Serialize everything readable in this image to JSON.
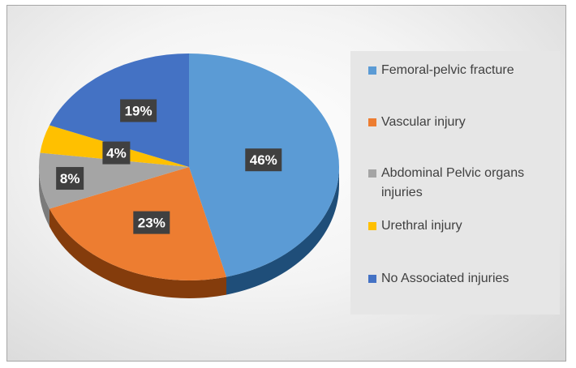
{
  "chart_data": {
    "type": "pie",
    "title": "",
    "categories": [
      "Femoral-pelvic fracture",
      "Vascular injury",
      "Abdominal Pelvic organs injuries",
      "Urethral injury",
      "No Associated injuries"
    ],
    "values": [
      46,
      23,
      8,
      4,
      19
    ],
    "data_labels": [
      "46%",
      "23%",
      "8%",
      "4%",
      "19%"
    ],
    "colors": [
      "#5b9bd5",
      "#ed7d31",
      "#a5a5a5",
      "#ffc000",
      "#4472c4"
    ],
    "side_colors": [
      "#1f4e79",
      "#843c0c",
      "#7b7b7b",
      "#bf9000",
      "#2f5597"
    ],
    "legend_position": "right",
    "style": "3d"
  },
  "legend": {
    "items": [
      {
        "label": "Femoral-pelvic fracture",
        "color": "#5b9bd5"
      },
      {
        "label": "Vascular injury",
        "color": "#ed7d31"
      },
      {
        "label": "Abdominal Pelvic organs injuries",
        "color": "#a5a5a5"
      },
      {
        "label": "Urethral injury",
        "color": "#ffc000"
      },
      {
        "label": "No Associated injuries",
        "color": "#4472c4"
      }
    ]
  }
}
